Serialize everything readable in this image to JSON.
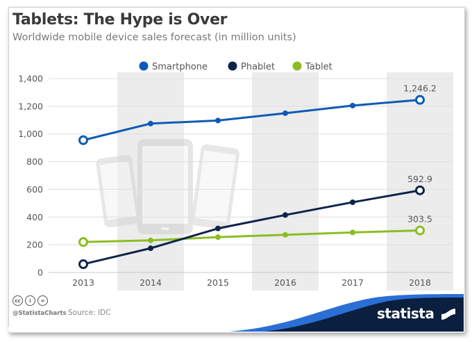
{
  "title": "Tablets: The Hype is Over",
  "subtitle": "Worldwide mobile device sales forecast (in million units)",
  "footer": {
    "handle": "@StatistaCharts",
    "source": "Source: IDC",
    "brand": "statista",
    "license_icons": [
      "cc-icon",
      "by-icon",
      "nd-icon"
    ],
    "license_glyphs": [
      "cc",
      "i",
      "="
    ]
  },
  "chart_data": {
    "type": "line",
    "title": "Tablets: The Hype is Over",
    "subtitle": "Worldwide mobile device sales forecast (in million units)",
    "xlabel": "",
    "ylabel": "",
    "categories": [
      "2013",
      "2014",
      "2015",
      "2016",
      "2017",
      "2018"
    ],
    "yticks": [
      0,
      200,
      400,
      600,
      800,
      1000,
      1200,
      1400
    ],
    "ytick_labels": [
      "0",
      "200",
      "400",
      "600",
      "800",
      "1,000",
      "1,200",
      "1,400"
    ],
    "ylim": [
      0,
      1400
    ],
    "grid": true,
    "legend_position": "top-center",
    "series": [
      {
        "name": "Smartphone",
        "color": "#0e5bb5",
        "values": [
          955,
          1075,
          1097,
          1150,
          1205,
          1246.2
        ],
        "end_label": "1,246.2"
      },
      {
        "name": "Phablet",
        "color": "#0f2449",
        "values": [
          60,
          175,
          318,
          415,
          507,
          592.9
        ],
        "end_label": "592.9"
      },
      {
        "name": "Tablet",
        "color": "#8bbd22",
        "values": [
          220,
          232,
          255,
          272,
          289,
          303.5
        ],
        "end_label": "303.5"
      }
    ]
  }
}
